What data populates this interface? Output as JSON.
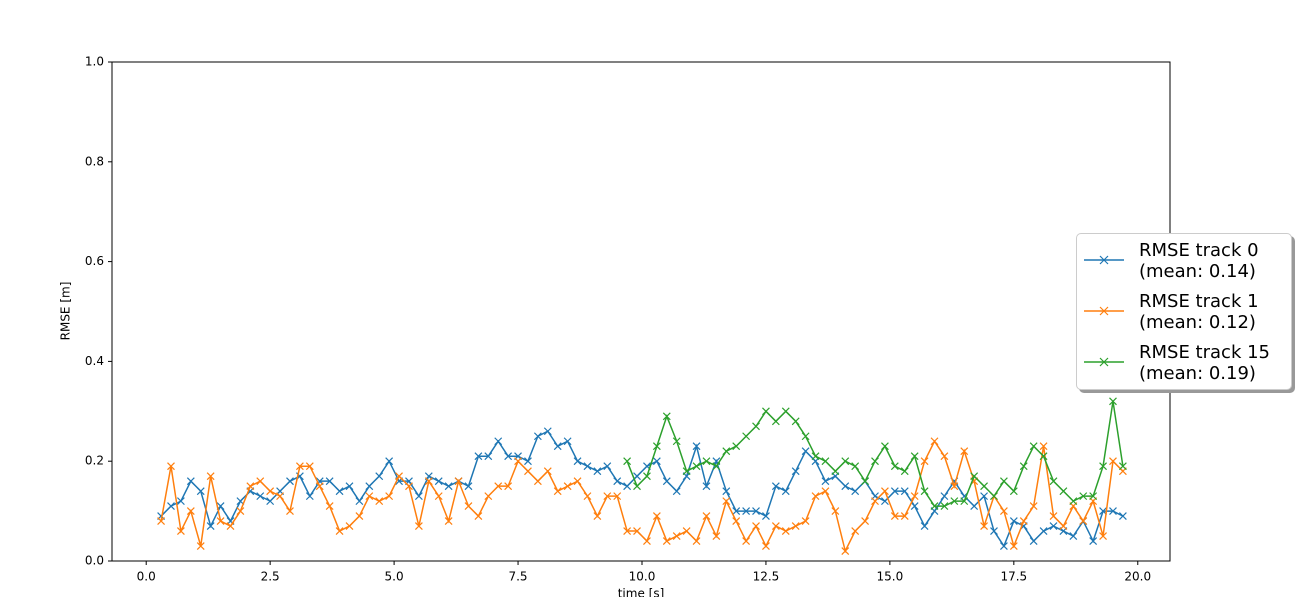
{
  "chart_data": {
    "type": "line",
    "xlabel": "time [s]",
    "ylabel": "RMSE [m]",
    "xlim": [
      -0.69,
      20.65
    ],
    "ylim": [
      0,
      1
    ],
    "xticks": [
      {
        "value": 0,
        "label": "0.0"
      },
      {
        "value": 2.5,
        "label": "2.5"
      },
      {
        "value": 5,
        "label": "5.0"
      },
      {
        "value": 7.5,
        "label": "7.5"
      },
      {
        "value": 10,
        "label": "10.0"
      },
      {
        "value": 12.5,
        "label": "12.5"
      },
      {
        "value": 15,
        "label": "15.0"
      },
      {
        "value": 17.5,
        "label": "17.5"
      },
      {
        "value": 20,
        "label": "20.0"
      }
    ],
    "yticks": [
      {
        "value": 0,
        "label": "0.0"
      },
      {
        "value": 0.2,
        "label": "0.2"
      },
      {
        "value": 0.4,
        "label": "0.4"
      },
      {
        "value": 0.6,
        "label": "0.6"
      },
      {
        "value": 0.8,
        "label": "0.8"
      },
      {
        "value": 1,
        "label": "1.0"
      }
    ],
    "legend": "right",
    "series": [
      {
        "name": "RMSE track 0\n(mean: 0.14)",
        "color": "#1f77b4",
        "x": [
          0.3,
          0.5,
          0.7,
          0.9,
          1.1,
          1.3,
          1.5,
          1.7,
          1.9,
          2.1,
          2.3,
          2.5,
          2.7,
          2.9,
          3.1,
          3.3,
          3.5,
          3.7,
          3.9,
          4.1,
          4.3,
          4.5,
          4.7,
          4.9,
          5.1,
          5.3,
          5.5,
          5.7,
          5.9,
          6.1,
          6.3,
          6.5,
          6.7,
          6.9,
          7.1,
          7.3,
          7.5,
          7.7,
          7.9,
          8.1,
          8.3,
          8.5,
          8.7,
          8.9,
          9.1,
          9.3,
          9.5,
          9.7,
          9.9,
          10.1,
          10.3,
          10.5,
          10.7,
          10.9,
          11.1,
          11.3,
          11.5,
          11.7,
          11.9,
          12.1,
          12.3,
          12.5,
          12.7,
          12.9,
          13.1,
          13.3,
          13.5,
          13.7,
          13.9,
          14.1,
          14.3,
          14.5,
          14.7,
          14.9,
          15.1,
          15.3,
          15.5,
          15.7,
          15.9,
          16.1,
          16.3,
          16.5,
          16.7,
          16.9,
          17.1,
          17.3,
          17.5,
          17.7,
          17.9,
          18.1,
          18.3,
          18.5,
          18.7,
          18.9,
          19.1,
          19.3,
          19.5,
          19.7
        ],
        "values": [
          0.09,
          0.11,
          0.12,
          0.16,
          0.14,
          0.07,
          0.11,
          0.08,
          0.12,
          0.14,
          0.13,
          0.12,
          0.14,
          0.16,
          0.17,
          0.13,
          0.16,
          0.16,
          0.14,
          0.15,
          0.12,
          0.15,
          0.17,
          0.2,
          0.16,
          0.16,
          0.13,
          0.17,
          0.16,
          0.15,
          0.16,
          0.15,
          0.21,
          0.21,
          0.24,
          0.21,
          0.21,
          0.2,
          0.25,
          0.26,
          0.23,
          0.24,
          0.2,
          0.19,
          0.18,
          0.19,
          0.16,
          0.15,
          0.17,
          0.19,
          0.2,
          0.16,
          0.14,
          0.17,
          0.23,
          0.15,
          0.2,
          0.14,
          0.1,
          0.1,
          0.1,
          0.09,
          0.15,
          0.14,
          0.18,
          0.22,
          0.2,
          0.16,
          0.17,
          0.15,
          0.14,
          0.16,
          0.13,
          0.12,
          0.14,
          0.14,
          0.11,
          0.07,
          0.1,
          0.13,
          0.16,
          0.13,
          0.11,
          0.13,
          0.06,
          0.03,
          0.08,
          0.07,
          0.04,
          0.06,
          0.07,
          0.06,
          0.05,
          0.08,
          0.04,
          0.1,
          0.1,
          0.09
        ]
      },
      {
        "name": "RMSE track 1\n(mean: 0.12)",
        "color": "#ff7f0e",
        "x": [
          0.3,
          0.5,
          0.7,
          0.9,
          1.1,
          1.3,
          1.5,
          1.7,
          1.9,
          2.1,
          2.3,
          2.5,
          2.7,
          2.9,
          3.1,
          3.3,
          3.5,
          3.7,
          3.9,
          4.1,
          4.3,
          4.5,
          4.7,
          4.9,
          5.1,
          5.3,
          5.5,
          5.7,
          5.9,
          6.1,
          6.3,
          6.5,
          6.7,
          6.9,
          7.1,
          7.3,
          7.5,
          7.7,
          7.9,
          8.1,
          8.3,
          8.5,
          8.7,
          8.9,
          9.1,
          9.3,
          9.5,
          9.7,
          9.9,
          10.1,
          10.3,
          10.5,
          10.7,
          10.9,
          11.1,
          11.3,
          11.5,
          11.7,
          11.9,
          12.1,
          12.3,
          12.5,
          12.7,
          12.9,
          13.1,
          13.3,
          13.5,
          13.7,
          13.9,
          14.1,
          14.3,
          14.5,
          14.7,
          14.9,
          15.1,
          15.3,
          15.5,
          15.7,
          15.9,
          16.1,
          16.3,
          16.5,
          16.7,
          16.9,
          17.1,
          17.3,
          17.5,
          17.7,
          17.9,
          18.1,
          18.3,
          18.5,
          18.7,
          18.9,
          19.1,
          19.3,
          19.5,
          19.7
        ],
        "values": [
          0.08,
          0.19,
          0.06,
          0.1,
          0.03,
          0.17,
          0.08,
          0.07,
          0.1,
          0.15,
          0.16,
          0.14,
          0.13,
          0.1,
          0.19,
          0.19,
          0.15,
          0.11,
          0.06,
          0.07,
          0.09,
          0.13,
          0.12,
          0.13,
          0.17,
          0.15,
          0.07,
          0.16,
          0.13,
          0.08,
          0.16,
          0.11,
          0.09,
          0.13,
          0.15,
          0.15,
          0.2,
          0.18,
          0.16,
          0.18,
          0.14,
          0.15,
          0.16,
          0.13,
          0.09,
          0.13,
          0.13,
          0.06,
          0.06,
          0.04,
          0.09,
          0.04,
          0.05,
          0.06,
          0.04,
          0.09,
          0.05,
          0.12,
          0.08,
          0.04,
          0.07,
          0.03,
          0.07,
          0.06,
          0.07,
          0.08,
          0.13,
          0.14,
          0.1,
          0.02,
          0.06,
          0.08,
          0.12,
          0.14,
          0.09,
          0.09,
          0.13,
          0.2,
          0.24,
          0.21,
          0.15,
          0.22,
          0.16,
          0.07,
          0.13,
          0.1,
          0.03,
          0.08,
          0.11,
          0.23,
          0.09,
          0.07,
          0.11,
          0.08,
          0.12,
          0.05,
          0.2,
          0.18
        ]
      },
      {
        "name": "RMSE track 15\n(mean: 0.19)",
        "color": "#2ca02c",
        "x": [
          9.7,
          9.9,
          10.1,
          10.3,
          10.5,
          10.7,
          10.9,
          11.1,
          11.3,
          11.5,
          11.7,
          11.9,
          12.1,
          12.3,
          12.5,
          12.7,
          12.9,
          13.1,
          13.3,
          13.5,
          13.7,
          13.9,
          14.1,
          14.3,
          14.5,
          14.7,
          14.9,
          15.1,
          15.3,
          15.5,
          15.7,
          15.9,
          16.1,
          16.3,
          16.5,
          16.7,
          16.9,
          17.1,
          17.3,
          17.5,
          17.7,
          17.9,
          18.1,
          18.3,
          18.5,
          18.7,
          18.9,
          19.1,
          19.3,
          19.5,
          19.7
        ],
        "values": [
          0.2,
          0.15,
          0.17,
          0.23,
          0.29,
          0.24,
          0.18,
          0.19,
          0.2,
          0.19,
          0.22,
          0.23,
          0.25,
          0.27,
          0.3,
          0.28,
          0.3,
          0.28,
          0.25,
          0.21,
          0.2,
          0.18,
          0.2,
          0.19,
          0.16,
          0.2,
          0.23,
          0.19,
          0.18,
          0.21,
          0.14,
          0.11,
          0.11,
          0.12,
          0.12,
          0.17,
          0.15,
          0.13,
          0.16,
          0.14,
          0.19,
          0.23,
          0.21,
          0.16,
          0.14,
          0.12,
          0.13,
          0.13,
          0.19,
          0.32,
          0.19
        ]
      }
    ]
  }
}
